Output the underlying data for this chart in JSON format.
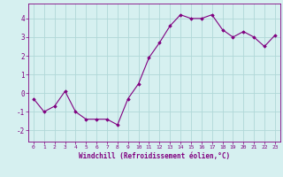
{
  "x": [
    0,
    1,
    2,
    3,
    4,
    5,
    6,
    7,
    8,
    9,
    10,
    11,
    12,
    13,
    14,
    15,
    16,
    17,
    18,
    19,
    20,
    21,
    22,
    23
  ],
  "y": [
    -0.3,
    -1.0,
    -0.7,
    0.1,
    -1.0,
    -1.4,
    -1.4,
    -1.4,
    -1.7,
    -0.3,
    0.5,
    1.9,
    2.7,
    3.6,
    4.2,
    4.0,
    4.0,
    4.2,
    3.4,
    3.0,
    3.3,
    3.0,
    2.5,
    3.1
  ],
  "line_color": "#800080",
  "marker": "D",
  "marker_size": 1.8,
  "line_width": 0.8,
  "background_color": "#d6f0f0",
  "grid_color": "#b0d8d8",
  "xlabel": "Windchill (Refroidissement éolien,°C)",
  "xlabel_color": "#800080",
  "tick_color": "#800080",
  "xlim": [
    -0.5,
    23.5
  ],
  "ylim": [
    -2.6,
    4.8
  ],
  "yticks": [
    -2,
    -1,
    0,
    1,
    2,
    3,
    4
  ],
  "xticks": [
    0,
    1,
    2,
    3,
    4,
    5,
    6,
    7,
    8,
    9,
    10,
    11,
    12,
    13,
    14,
    15,
    16,
    17,
    18,
    19,
    20,
    21,
    22,
    23
  ],
  "xlabel_fontsize": 5.5,
  "xtick_fontsize": 4.5,
  "ytick_fontsize": 5.5
}
